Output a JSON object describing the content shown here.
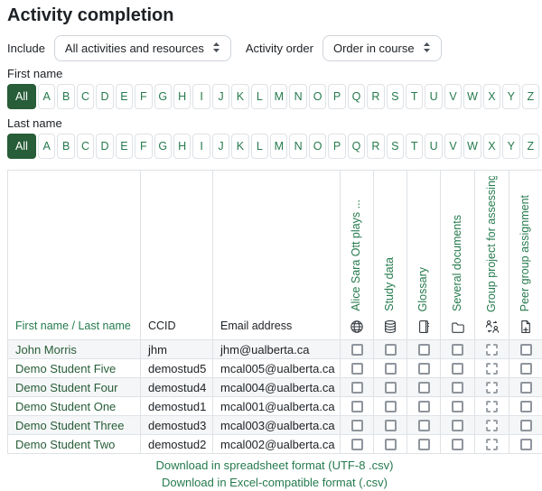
{
  "page": {
    "title": "Activity completion"
  },
  "colors": {
    "accent_green": "#275d38",
    "link_green": "#257a4d",
    "border_gray": "#dee2e6",
    "stripe_gray": "#f5f6f7"
  },
  "filters": {
    "include_label": "Include",
    "include_value": "All activities and resources",
    "order_label": "Activity order",
    "order_value": "Order in course"
  },
  "name_filters": {
    "first_label": "First name",
    "last_label": "Last name",
    "all_label": "All",
    "letters": [
      "A",
      "B",
      "C",
      "D",
      "E",
      "F",
      "G",
      "H",
      "I",
      "J",
      "K",
      "L",
      "M",
      "N",
      "O",
      "P",
      "Q",
      "R",
      "S",
      "T",
      "U",
      "V",
      "W",
      "X",
      "Y",
      "Z"
    ]
  },
  "table": {
    "name_header": "First name / Last name",
    "ccid_header": "CCID",
    "email_header": "Email address",
    "activities": [
      {
        "label": "Alice Sara Ott plays ...",
        "icon": "globe-icon",
        "checkbox_style": "solid"
      },
      {
        "label": "Study data",
        "icon": "database-icon",
        "checkbox_style": "solid"
      },
      {
        "label": "Glossary",
        "icon": "book-icon",
        "checkbox_style": "solid"
      },
      {
        "label": "Several documents",
        "icon": "folder-icon",
        "checkbox_style": "solid"
      },
      {
        "label": "Group project for assessing...",
        "icon": "group-icon",
        "checkbox_style": "dashed"
      },
      {
        "label": "Peer group assignment",
        "icon": "assignment-icon",
        "checkbox_style": "solid"
      }
    ],
    "rows": [
      {
        "name": "John Morris",
        "ccid": "jhm",
        "email": "jhm@ualberta.ca",
        "checks": [
          false,
          false,
          false,
          false,
          false,
          false
        ]
      },
      {
        "name": "Demo Student Five",
        "ccid": "demostud5",
        "email": "mcal005@ualberta.ca",
        "checks": [
          false,
          false,
          false,
          false,
          false,
          false
        ]
      },
      {
        "name": "Demo Student Four",
        "ccid": "demostud4",
        "email": "mcal004@ualberta.ca",
        "checks": [
          false,
          false,
          false,
          false,
          false,
          false
        ]
      },
      {
        "name": "Demo Student One",
        "ccid": "demostud1",
        "email": "mcal001@ualberta.ca",
        "checks": [
          false,
          false,
          false,
          false,
          false,
          false
        ]
      },
      {
        "name": "Demo Student Three",
        "ccid": "demostud3",
        "email": "mcal003@ualberta.ca",
        "checks": [
          false,
          false,
          false,
          false,
          false,
          false
        ]
      },
      {
        "name": "Demo Student Two",
        "ccid": "demostud2",
        "email": "mcal002@ualberta.ca",
        "checks": [
          false,
          false,
          false,
          false,
          false,
          false
        ]
      }
    ]
  },
  "footer": {
    "links": [
      "Download in spreadsheet format (UTF-8 .csv)",
      "Download in Excel-compatible format (.csv)"
    ]
  }
}
